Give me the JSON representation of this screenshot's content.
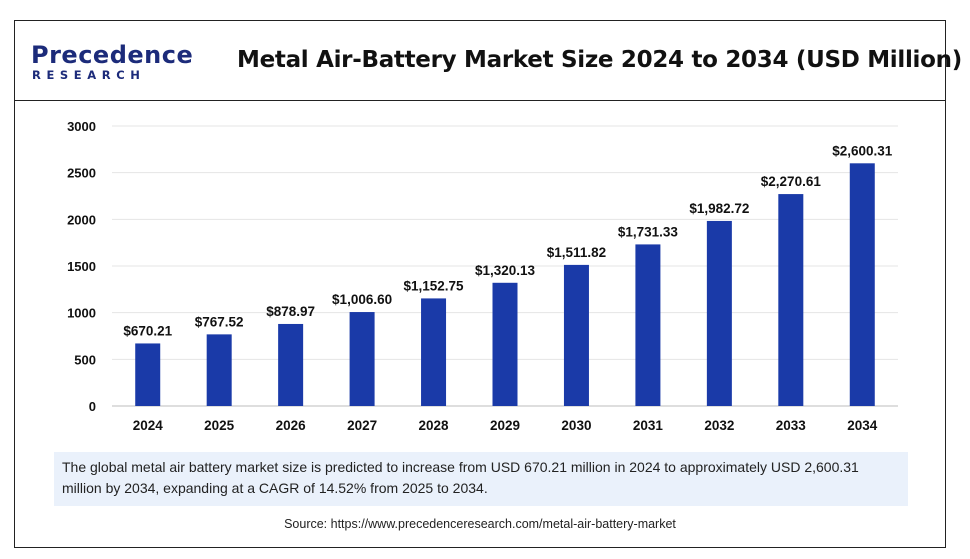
{
  "logo": {
    "top": "Precedence",
    "bottom": "RESEARCH"
  },
  "title": "Metal Air-Battery Market Size 2024 to 2034 (USD Million)",
  "summary": "The global metal air battery market size is predicted to increase from USD 670.21 million in 2024 to approximately USD 2,600.31 million by 2034, expanding at a CAGR of 14.52% from 2025 to 2034.",
  "source": "Source: https://www.precedenceresearch.com/metal-air-battery-market",
  "colors": {
    "bar": "#1a3aa8",
    "brand": "#1c2b7a",
    "summary_bg": "#eaf1fb"
  },
  "chart_data": {
    "type": "bar",
    "title": "Metal Air-Battery Market Size 2024 to 2034 (USD Million)",
    "categories": [
      "2024",
      "2025",
      "2026",
      "2027",
      "2028",
      "2029",
      "2030",
      "2031",
      "2032",
      "2033",
      "2034"
    ],
    "values": [
      670.21,
      767.52,
      878.97,
      1006.6,
      1152.75,
      1320.13,
      1511.82,
      1731.33,
      1982.72,
      2270.61,
      2600.31
    ],
    "labels": [
      "$670.21",
      "$767.52",
      "$878.97",
      "$1,006.60",
      "$1,152.75",
      "$1,320.13",
      "$1,511.82",
      "$1,731.33",
      "$1,982.72",
      "$2,270.61",
      "$2,600.31"
    ],
    "xlabel": "",
    "ylabel": "",
    "ylim": [
      0,
      3000
    ],
    "yticks": [
      "0",
      "500",
      "1000",
      "1500",
      "2000",
      "2500",
      "3000"
    ],
    "grid": true,
    "legend": "none"
  }
}
